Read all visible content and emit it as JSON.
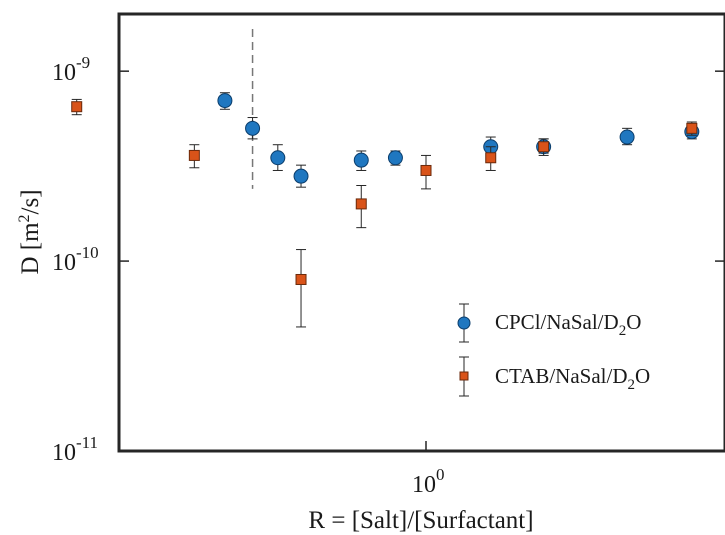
{
  "chart_data": {
    "type": "scatter",
    "title": "",
    "xlabel": "R = [Salt]/[Surfactant]",
    "ylabel_base": "D [m",
    "ylabel_sup": "2",
    "ylabel_end": "/s]",
    "xscale": "log",
    "yscale": "log",
    "xlim": [
      0.3,
      2.5
    ],
    "ylim": [
      1e-11,
      2e-09
    ],
    "x_ticks": [
      {
        "value": 1,
        "label": "10",
        "exp": "0"
      }
    ],
    "y_ticks": [
      {
        "value": 1e-09,
        "label": "10",
        "exp": "-9"
      },
      {
        "value": 1e-10,
        "label": "10",
        "exp": "-10"
      },
      {
        "value": 1e-11,
        "label": "10",
        "exp": "-11"
      }
    ],
    "vline_x": 0.55,
    "legend_position": "lower-right",
    "series": [
      {
        "name_base": "CPCl/NaSal/D",
        "name_sub": "2",
        "name_end": "O",
        "marker": "circle",
        "color": "#1f77c0",
        "points": [
          {
            "x": 0.5,
            "y": 7e-10,
            "lo": 6.3e-10,
            "hi": 7.7e-10
          },
          {
            "x": 0.55,
            "y": 5e-10,
            "lo": 4.4e-10,
            "hi": 5.7e-10
          },
          {
            "x": 0.6,
            "y": 3.5e-10,
            "lo": 3e-10,
            "hi": 4.1e-10
          },
          {
            "x": 0.65,
            "y": 2.8e-10,
            "lo": 2.45e-10,
            "hi": 3.2e-10
          },
          {
            "x": 0.8,
            "y": 3.4e-10,
            "lo": 3e-10,
            "hi": 3.8e-10
          },
          {
            "x": 0.9,
            "y": 3.5e-10,
            "lo": 3.2e-10,
            "hi": 3.8e-10
          },
          {
            "x": 1.25,
            "y": 4e-10,
            "lo": 3.5e-10,
            "hi": 4.5e-10
          },
          {
            "x": 1.5,
            "y": 4e-10,
            "lo": 3.7e-10,
            "hi": 4.4e-10
          },
          {
            "x": 2.0,
            "y": 4.5e-10,
            "lo": 4.1e-10,
            "hi": 5e-10
          },
          {
            "x": 2.5,
            "y": 4.8e-10,
            "lo": 4.4e-10,
            "hi": 5.3e-10
          }
        ]
      },
      {
        "name_base": "CTAB/NaSal/D",
        "name_sub": "2",
        "name_end": "O",
        "marker": "square",
        "color": "#d95319",
        "points": [
          {
            "x": 0.3,
            "y": 6.5e-10,
            "lo": 5.9e-10,
            "hi": 7.1e-10
          },
          {
            "x": 0.45,
            "y": 3.6e-10,
            "lo": 3.1e-10,
            "hi": 4.1e-10
          },
          {
            "x": 0.65,
            "y": 8e-11,
            "lo": 4.5e-11,
            "hi": 1.15e-10
          },
          {
            "x": 0.8,
            "y": 2e-10,
            "lo": 1.5e-10,
            "hi": 2.5e-10
          },
          {
            "x": 1.0,
            "y": 3e-10,
            "lo": 2.4e-10,
            "hi": 3.6e-10
          },
          {
            "x": 1.25,
            "y": 3.5e-10,
            "lo": 3e-10,
            "hi": 4e-10
          },
          {
            "x": 1.5,
            "y": 4e-10,
            "lo": 3.6e-10,
            "hi": 4.4e-10
          },
          {
            "x": 2.5,
            "y": 5e-10,
            "lo": 4.6e-10,
            "hi": 5.4e-10
          }
        ]
      }
    ]
  }
}
